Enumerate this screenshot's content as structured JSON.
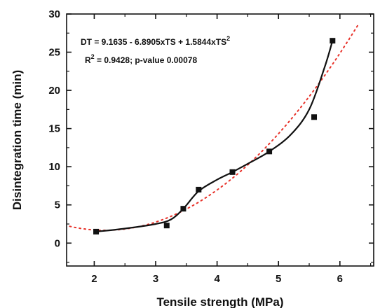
{
  "chart_data": {
    "type": "scatter",
    "title": "",
    "xlabel": "Tensile strength (MPa)",
    "ylabel": "Disintegration time (min)",
    "xlim": [
      1.55,
      6.55
    ],
    "ylim": [
      -3,
      30
    ],
    "xticks": [
      2,
      3,
      4,
      5,
      6
    ],
    "yticks": [
      0,
      5,
      10,
      15,
      20,
      25,
      30
    ],
    "grid": false,
    "legend": "none",
    "annotations": [
      {
        "text": "DT = 9.1635 - 6.8905xTS + 1.5844xTS",
        "sup": "2"
      },
      {
        "text": "R",
        "sup": "2",
        "rest": " = 0.9428; p-value 0.00078"
      }
    ],
    "series": [
      {
        "kind": "points",
        "marker": "square",
        "color": "#111111",
        "x": [
          2.03,
          3.18,
          3.45,
          3.7,
          4.25,
          4.85,
          5.58,
          5.88
        ],
        "y": [
          1.5,
          2.3,
          4.5,
          7.0,
          9.3,
          12.0,
          16.5,
          26.5
        ]
      },
      {
        "kind": "smooth-line",
        "color": "#111111",
        "x": [
          2.03,
          2.5,
          3.0,
          3.25,
          3.45,
          3.7,
          4.0,
          4.25,
          4.55,
          4.85,
          5.2,
          5.5,
          5.75,
          5.88
        ],
        "y": [
          1.5,
          1.9,
          2.5,
          3.1,
          4.5,
          6.8,
          8.3,
          9.3,
          10.6,
          12.0,
          14.2,
          17.5,
          23.0,
          26.5
        ]
      },
      {
        "kind": "dotted-fit",
        "color": "#e8322a",
        "coefficients": [
          9.1635,
          -6.8905,
          1.5844
        ],
        "x_range": [
          1.6,
          6.3
        ]
      }
    ]
  }
}
